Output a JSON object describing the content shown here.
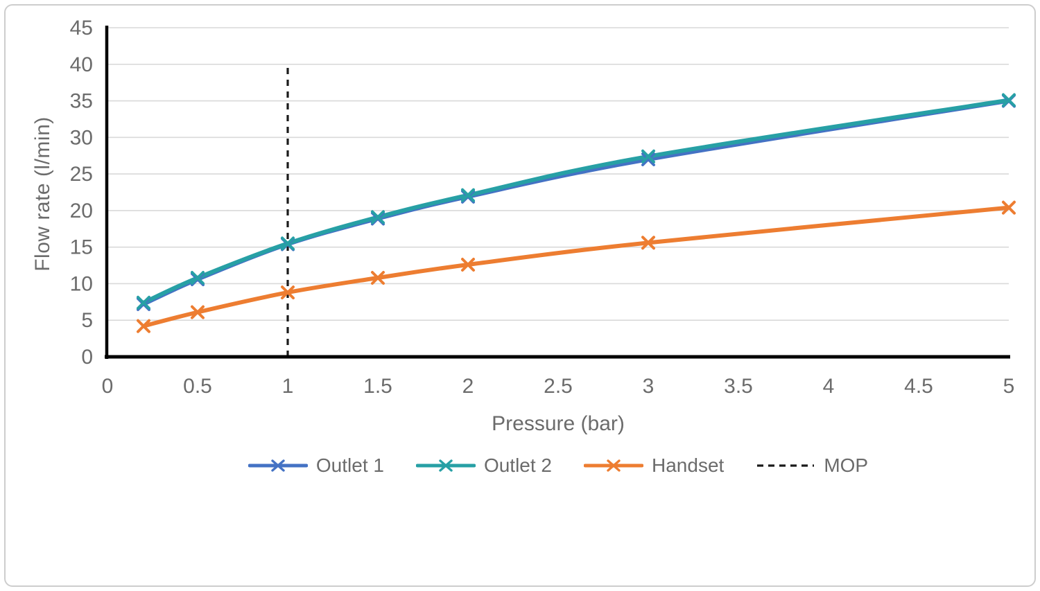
{
  "figure": {
    "y_axis_title": "Flow rate (l/min)",
    "x_axis_title": "Pressure (bar)"
  },
  "legend": {
    "items": [
      {
        "label": "Outlet 1",
        "color": "#4472C4",
        "swatch": "line-x"
      },
      {
        "label": "Outlet 2",
        "color": "#27A0A5",
        "swatch": "line-x"
      },
      {
        "label": "Handset",
        "color": "#ED7D31",
        "swatch": "line-x"
      },
      {
        "label": "MOP",
        "color": "#1A1A1A",
        "swatch": "dash"
      }
    ]
  },
  "chart_data": {
    "type": "line",
    "title": "",
    "xlabel": "Pressure (bar)",
    "ylabel": "Flow rate (l/min)",
    "x": [
      0.2,
      0.5,
      1,
      1.5,
      2,
      3,
      5
    ],
    "series": [
      {
        "name": "Outlet 1",
        "color": "#4472C4",
        "marker": "x",
        "values": [
          7.2,
          10.6,
          15.4,
          18.9,
          21.9,
          27.0,
          35.0
        ]
      },
      {
        "name": "Outlet 2",
        "color": "#27A0A5",
        "marker": "x",
        "values": [
          7.4,
          10.8,
          15.5,
          19.1,
          22.1,
          27.4,
          35.1
        ]
      },
      {
        "name": "Handset",
        "color": "#ED7D31",
        "marker": "x",
        "values": [
          4.2,
          6.1,
          8.8,
          10.8,
          12.6,
          15.6,
          20.4
        ]
      }
    ],
    "reference_line": {
      "name": "MOP",
      "x": 1,
      "y_from": 0,
      "y_to": 40,
      "style": "dashed",
      "color": "#1A1A1A"
    },
    "xlim": [
      0,
      5
    ],
    "ylim": [
      0,
      45
    ],
    "x_ticks": [
      "0",
      "0.5",
      "1",
      "1.5",
      "2",
      "2.5",
      "3",
      "3.5",
      "4",
      "4.5",
      "5"
    ],
    "y_ticks": [
      "0",
      "5",
      "10",
      "15",
      "20",
      "25",
      "30",
      "35",
      "40",
      "45"
    ],
    "grid": "horizontal",
    "gridline_color": "#D9D9D9",
    "axis_color": "#000000",
    "tick_text_color": "#6b6b6b",
    "legend_position": "bottom",
    "smooth_lines": true
  }
}
